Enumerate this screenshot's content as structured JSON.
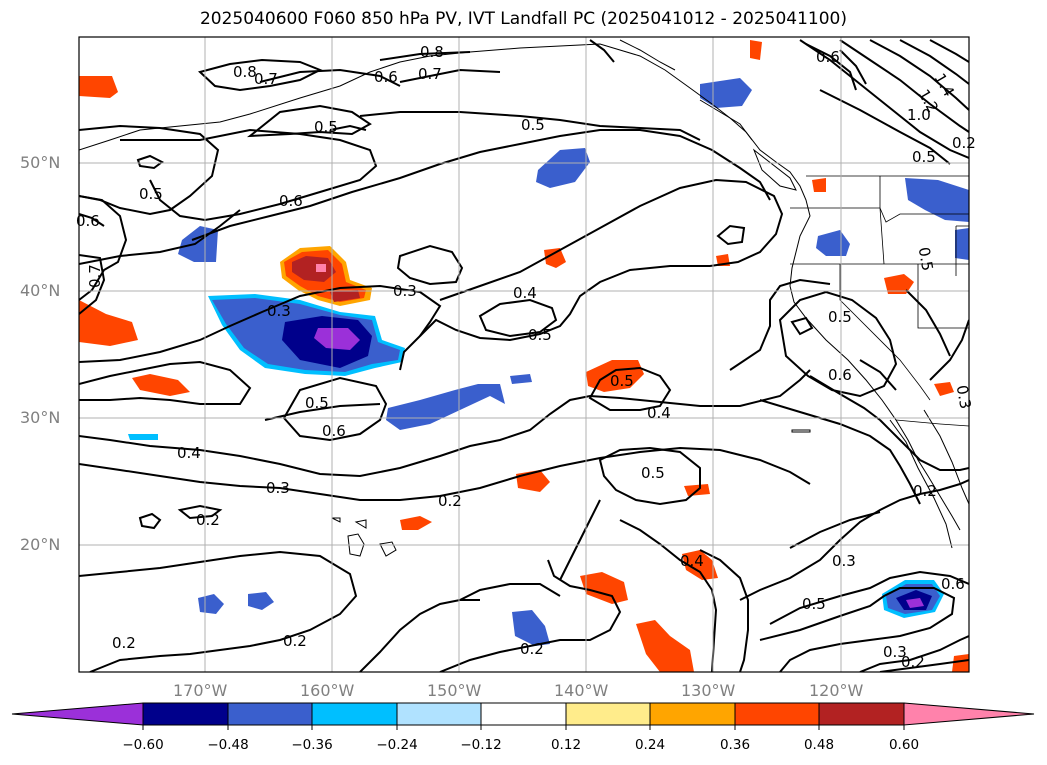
{
  "title": "2025040600 F060 850 hPa PV, IVT Landfall PC (2025041012 - 2025041100)",
  "lat_labels": [
    "50°N",
    "40°N",
    "30°N",
    "20°N"
  ],
  "lon_labels": [
    "170°W",
    "160°W",
    "150°W",
    "140°W",
    "130°W",
    "120°W"
  ],
  "colorbar": {
    "ticks": [
      "−0.60",
      "−0.48",
      "−0.36",
      "−0.24",
      "−0.12",
      "0.12",
      "0.24",
      "0.36",
      "0.48",
      "0.60"
    ],
    "colors": [
      "#9b30d9",
      "#00008b",
      "#3a5fcd",
      "#00bfff",
      "#b0e2ff",
      "#ffffff",
      "#ffec8b",
      "#ffa500",
      "#ff4500",
      "#b22222",
      "#ff82ab"
    ]
  },
  "contour_labels": [
    {
      "text": "0.8"
    },
    {
      "text": "0.7"
    },
    {
      "text": "0.6"
    },
    {
      "text": "0.7"
    },
    {
      "text": "0.8"
    },
    {
      "text": "0.5"
    },
    {
      "text": "0.5"
    },
    {
      "text": "0.5"
    },
    {
      "text": "0.6"
    },
    {
      "text": "0.6"
    },
    {
      "text": "0.7"
    },
    {
      "text": "0.3"
    },
    {
      "text": "0.3"
    },
    {
      "text": "0.4"
    },
    {
      "text": "0.5"
    },
    {
      "text": "0.5"
    },
    {
      "text": "0.4"
    },
    {
      "text": "0.5"
    },
    {
      "text": "0.6"
    },
    {
      "text": "0.4"
    },
    {
      "text": "0.3"
    },
    {
      "text": "0.2"
    },
    {
      "text": "0.2"
    },
    {
      "text": "0.5"
    },
    {
      "text": "0.2"
    },
    {
      "text": "0.4"
    },
    {
      "text": "0.3"
    },
    {
      "text": "0.5"
    },
    {
      "text": "0.6"
    },
    {
      "text": "0.3"
    },
    {
      "text": "0.2"
    },
    {
      "text": "0.2"
    },
    {
      "text": "0.2"
    },
    {
      "text": "0.2"
    },
    {
      "text": "0.5"
    },
    {
      "text": "0.6"
    },
    {
      "text": "1.4"
    },
    {
      "text": "1.2"
    },
    {
      "text": "1.0"
    },
    {
      "text": "0.5"
    },
    {
      "text": "0.5"
    },
    {
      "text": "0.3"
    },
    {
      "text": "0.2"
    },
    {
      "text": "0.6"
    }
  ]
}
